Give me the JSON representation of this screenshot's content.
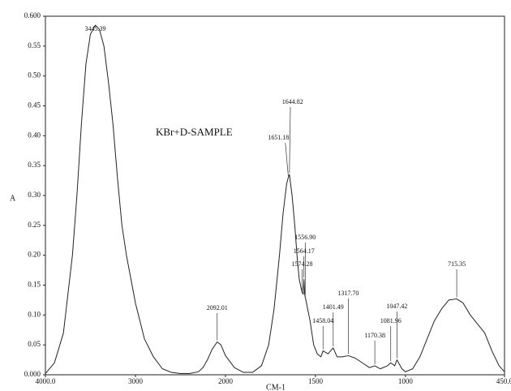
{
  "chart_data": {
    "type": "line",
    "annotation": "KBr+D-SAMPLE",
    "xlabel": "CM-1",
    "ylabel": "A",
    "xlim": [
      4000,
      450
    ],
    "x_scale_break": 2000,
    "ylim": [
      0,
      0.6
    ],
    "xticks": [
      {
        "value": 4000,
        "label": "4000.0"
      },
      3000,
      2000,
      1500,
      1000,
      {
        "value": 450,
        "label": "450.0"
      }
    ],
    "yticks": [
      {
        "value": 0,
        "label": "0.000"
      },
      0.05,
      {
        "value": 0.1,
        "label": "0.10"
      },
      0.15,
      {
        "value": 0.2,
        "label": "0.20"
      },
      0.25,
      {
        "value": 0.3,
        "label": "0.30"
      },
      0.35,
      {
        "value": 0.4,
        "label": "0.40"
      },
      0.45,
      {
        "value": 0.5,
        "label": "0.50"
      },
      0.55,
      {
        "value": 0.6,
        "label": "0.600"
      }
    ],
    "color": "#222222",
    "x": [
      4000,
      3900,
      3800,
      3700,
      3650,
      3600,
      3550,
      3500,
      3445.39,
      3400,
      3350,
      3300,
      3250,
      3200,
      3150,
      3100,
      3050,
      3000,
      2950,
      2900,
      2850,
      2800,
      2700,
      2600,
      2500,
      2400,
      2300,
      2250,
      2200,
      2150,
      2092.01,
      2050,
      2000,
      1950,
      1900,
      1850,
      1800,
      1760,
      1730,
      1700,
      1680,
      1660,
      1651.18,
      1644.82,
      1630,
      1615,
      1600,
      1590,
      1580,
      1574.28,
      1568,
      1564.17,
      1560,
      1556.9,
      1550,
      1530,
      1510,
      1490,
      1470,
      1458.04,
      1430,
      1401.49,
      1380,
      1350,
      1317.7,
      1280,
      1240,
      1200,
      1170.38,
      1140,
      1100,
      1081.96,
      1060,
      1047.42,
      1020,
      1000,
      960,
      920,
      880,
      840,
      800,
      760,
      715.35,
      680,
      640,
      600,
      560,
      520,
      480,
      450
    ],
    "values": [
      0.002,
      0.02,
      0.07,
      0.2,
      0.3,
      0.42,
      0.52,
      0.57,
      0.585,
      0.578,
      0.55,
      0.49,
      0.42,
      0.33,
      0.25,
      0.2,
      0.16,
      0.12,
      0.09,
      0.06,
      0.045,
      0.03,
      0.01,
      0.004,
      0.002,
      0.002,
      0.005,
      0.012,
      0.025,
      0.042,
      0.055,
      0.05,
      0.032,
      0.012,
      0.004,
      0.004,
      0.015,
      0.05,
      0.11,
      0.2,
      0.27,
      0.32,
      0.33,
      0.335,
      0.3,
      0.25,
      0.19,
      0.16,
      0.145,
      0.138,
      0.135,
      0.16,
      0.135,
      0.13,
      0.12,
      0.09,
      0.05,
      0.035,
      0.03,
      0.04,
      0.035,
      0.045,
      0.03,
      0.03,
      0.032,
      0.028,
      0.02,
      0.012,
      0.015,
      0.01,
      0.015,
      0.02,
      0.015,
      0.025,
      0.01,
      0.005,
      0.01,
      0.03,
      0.06,
      0.09,
      0.11,
      0.125,
      0.127,
      0.12,
      0.1,
      0.085,
      0.07,
      0.04,
      0.015,
      0.005
    ],
    "peaks": {
      "x": [
        3445.39,
        2092.01,
        1651.18,
        1644.82,
        1556.9,
        1564.17,
        1574.28,
        1458.04,
        1401.49,
        1317.7,
        1170.38,
        1081.96,
        1047.42,
        715.35
      ],
      "x_labels": [
        "3445.39",
        "2092.01",
        "1651.18",
        "1644.82",
        "1556.90",
        "1564.17",
        "1574.28",
        "1458.04",
        "1401.49",
        "1317.70",
        "1170.38",
        "1081.96",
        "1047.42",
        "715.35"
      ],
      "y": [
        0.585,
        0.055,
        0.33,
        0.335,
        0.13,
        0.16,
        0.138,
        0.04,
        0.045,
        0.032,
        0.015,
        0.02,
        0.025,
        0.127
      ]
    }
  }
}
